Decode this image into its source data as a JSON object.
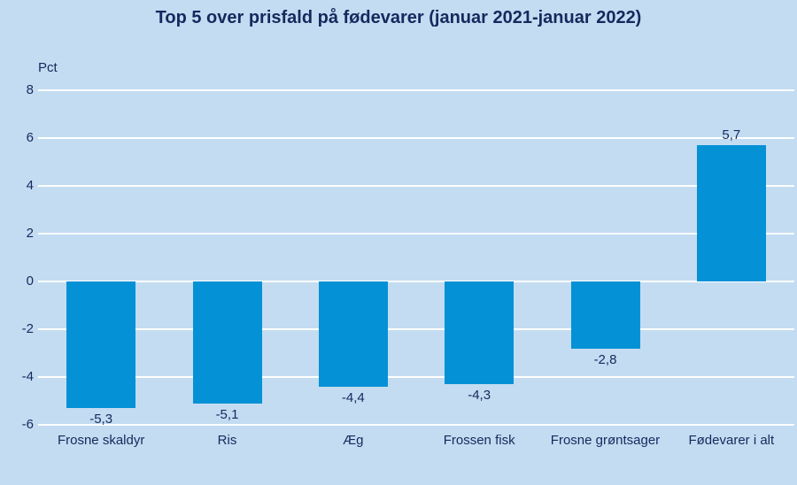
{
  "title": "Top 5 over prisfald på fødevarer (januar 2021-januar 2022)",
  "unit_label": "Pct",
  "colors": {
    "background": "#c3dcf1",
    "bar": "#0591d6",
    "text": "#16295e",
    "gridline": "#ffffff"
  },
  "chart_data": {
    "type": "bar",
    "title": "Top 5 over prisfald på fødevarer (januar 2021-januar 2022)",
    "categories": [
      "Frosne skaldyr",
      "Ris",
      "Æg",
      "Frossen fisk",
      "Frosne grøntsager",
      "Fødevarer i alt"
    ],
    "values": [
      -5.3,
      -5.1,
      -4.4,
      -4.3,
      -2.8,
      5.7
    ],
    "value_labels": [
      "-5,3",
      "-5,1",
      "-4,4",
      "-4,3",
      "-2,8",
      "5,7"
    ],
    "xlabel": "",
    "ylabel": "Pct",
    "ylim": [
      -6,
      8
    ],
    "yticks": [
      8,
      6,
      4,
      2,
      0,
      -2,
      -4,
      -6
    ],
    "grid": true,
    "legend": "none"
  }
}
